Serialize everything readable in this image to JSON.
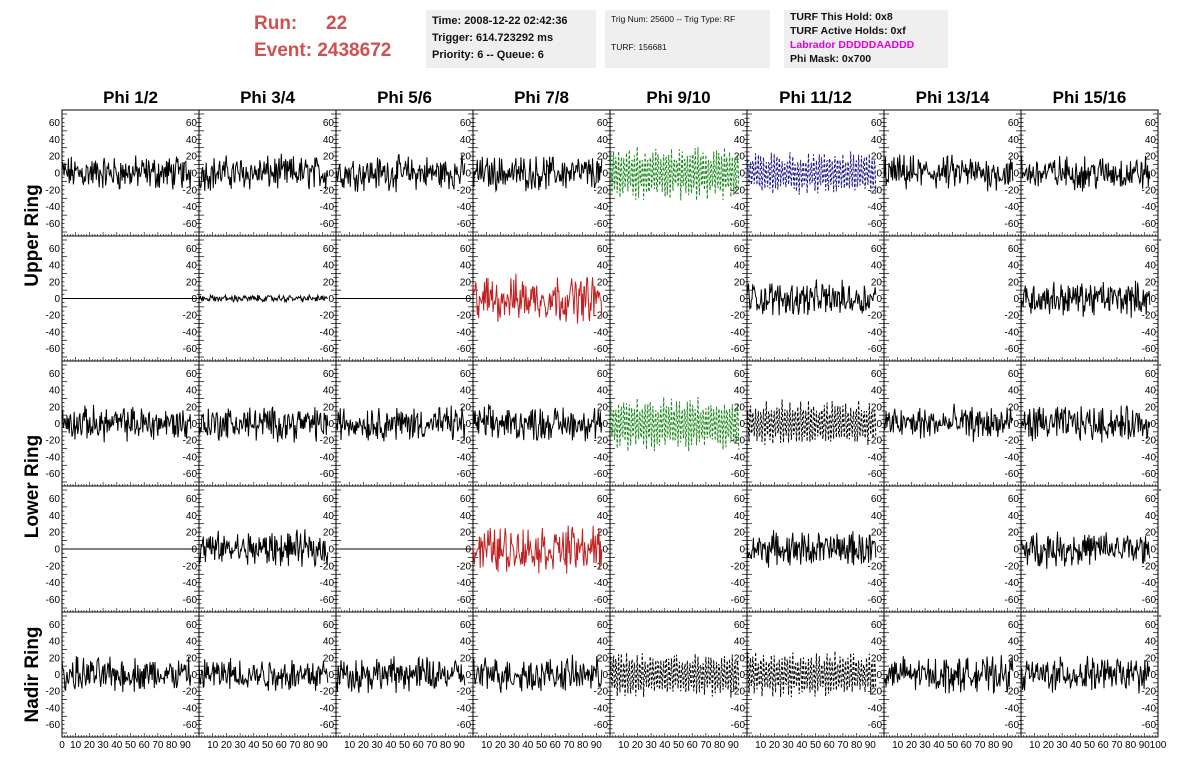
{
  "header": {
    "run_label": "Run:",
    "run_value": "22",
    "event_label": "Event:",
    "event_value": "2438672",
    "time": "Time: 2008-12-22 02:42:36",
    "trigger": "Trigger: 614.723292 ms",
    "priority": "Priority: 6 -- Queue: 6",
    "trig_num": "Trig Num: 25600 -- Trig Type: RF",
    "turf": "TURF: 156681",
    "turf_hold": "TURF This Hold: 0x8",
    "turf_active": "TURF Active Holds: 0xf",
    "labrador": "Labrador DDDDDAADDD",
    "phi_mask": "Phi Mask: 0x700"
  },
  "colors": {
    "run_text": "#d05050",
    "magenta": "#e000e0",
    "green": "#1a8a1a",
    "blue": "#1a1a8a",
    "red": "#c02020",
    "black": "#000000"
  },
  "chart_data": {
    "type": "line",
    "columns": [
      "Phi 1/2",
      "Phi 3/4",
      "Phi 5/6",
      "Phi 7/8",
      "Phi 9/10",
      "Phi 11/12",
      "Phi 13/14",
      "Phi 15/16"
    ],
    "rows": [
      "Upper Ring",
      "Lower Ring",
      "Nadir Ring"
    ],
    "ylim": [
      -70,
      70
    ],
    "yticks": [
      -60,
      -40,
      -20,
      0,
      20,
      40,
      60
    ],
    "xlim": [
      0,
      100
    ],
    "xticks": [
      0,
      10,
      20,
      30,
      40,
      50,
      60,
      70,
      80,
      90,
      100
    ],
    "panels": [
      [
        "black",
        "black",
        "black",
        "black",
        "green-dash",
        "blue-dash",
        "black",
        "black"
      ],
      [
        "flat",
        "black-small",
        "flat",
        "red",
        "empty",
        "black",
        "empty",
        "black"
      ],
      [
        "black",
        "black",
        "black",
        "black",
        "green-dash",
        "black-dash",
        "black",
        "black"
      ],
      [
        "flat",
        "black",
        "flat",
        "red",
        "empty",
        "black",
        "empty",
        "black"
      ],
      [
        "black",
        "black",
        "black",
        "black",
        "black-dash",
        "black-dash",
        "black",
        "black"
      ]
    ],
    "amplitude": {
      "black": 15,
      "black-small": 3,
      "red": 20,
      "green-dash": 28,
      "blue-dash": 22,
      "black-dash": 24
    }
  }
}
